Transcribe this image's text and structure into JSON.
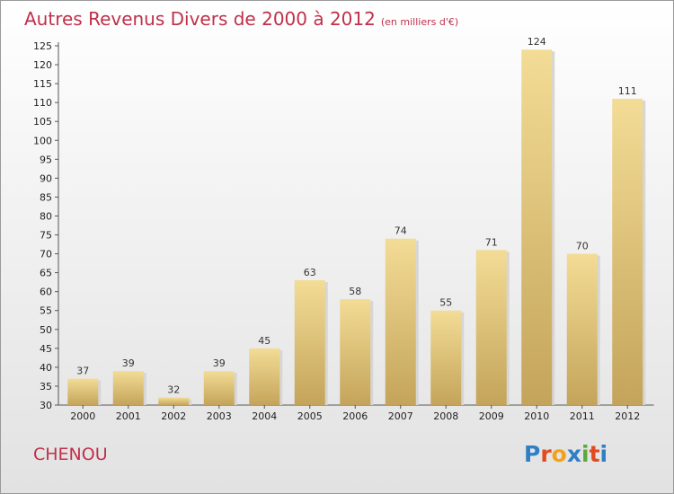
{
  "header": {
    "title": "Autres Revenus Divers de 2000 à 2012",
    "unit": "(en milliers d'€)"
  },
  "footer": {
    "town": "CHENOU",
    "logo": "Proxiti"
  },
  "colors": {
    "title": "#c0304a",
    "bar_light": "#f3dc96",
    "bar_dark": "#c4a45a",
    "logo": [
      "#2f7fc4",
      "#e24a1f",
      "#f0a21c",
      "#2f7fc4",
      "#5aaa3c",
      "#e24a1f",
      "#2f7fc4"
    ]
  },
  "chart_data": {
    "type": "bar",
    "title": "Autres Revenus Divers de 2000 à 2012",
    "subtitle": "(en milliers d'€)",
    "xlabel": "",
    "ylabel": "",
    "categories": [
      "2000",
      "2001",
      "2002",
      "2003",
      "2004",
      "2005",
      "2006",
      "2007",
      "2008",
      "2009",
      "2010",
      "2011",
      "2012"
    ],
    "values": [
      37,
      39,
      32,
      39,
      45,
      63,
      58,
      74,
      55,
      71,
      124,
      70,
      111
    ],
    "ylim": [
      30,
      125
    ],
    "yticks": [
      30,
      35,
      40,
      45,
      50,
      55,
      60,
      65,
      70,
      75,
      80,
      85,
      90,
      95,
      100,
      105,
      110,
      115,
      120,
      125
    ],
    "grid": false,
    "legend": "none"
  }
}
